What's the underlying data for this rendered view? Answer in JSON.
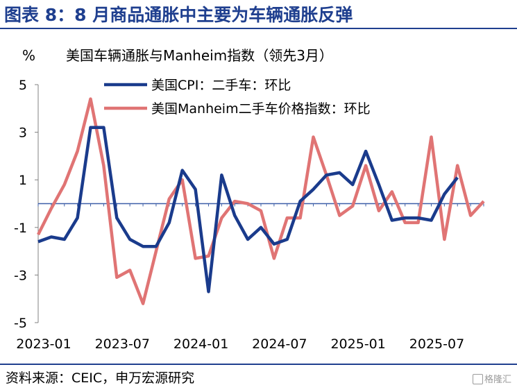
{
  "figure_title": "图表 8：8 月商品通胀中主要为车辆通胀反弹",
  "source_note": "资料来源：CEIC，申万宏源研究",
  "watermark": "格隆汇",
  "colors": {
    "cpi": "#1a3b8c",
    "manheim": "#e07474",
    "zero_line": "#3d5fa8",
    "title": "#1f3f8f"
  },
  "chart_data": {
    "type": "line",
    "title": "美国车辆通胀与Manheim指数（领先3月）",
    "ylabel": "%",
    "ylim": [
      -5,
      5
    ],
    "yticks": [
      5,
      3,
      1,
      -1,
      -3,
      -5
    ],
    "xtick_labels": [
      "2023-01",
      "2023-07",
      "2024-01",
      "2024-07",
      "2025-01",
      "2025-07"
    ],
    "xtick_index": [
      0,
      6,
      12,
      18,
      24,
      30
    ],
    "grid": false,
    "legend": "top",
    "x": [
      "2023-01",
      "2023-02",
      "2023-03",
      "2023-04",
      "2023-05",
      "2023-06",
      "2023-07",
      "2023-08",
      "2023-09",
      "2023-10",
      "2023-11",
      "2023-12",
      "2024-01",
      "2024-02",
      "2024-03",
      "2024-04",
      "2024-05",
      "2024-06",
      "2024-07",
      "2024-08",
      "2024-09",
      "2024-10",
      "2024-11",
      "2024-12",
      "2025-01",
      "2025-02",
      "2025-03",
      "2025-04",
      "2025-05",
      "2025-06",
      "2025-07",
      "2025-08",
      "2025-09",
      "2025-10",
      "2025-11"
    ],
    "series": [
      {
        "name": "美国CPI：二手车：环比",
        "values": [
          -1.6,
          -1.4,
          -1.5,
          -0.6,
          3.2,
          3.2,
          -0.6,
          -1.5,
          -1.8,
          -1.8,
          -0.8,
          1.4,
          0.6,
          -3.7,
          1.2,
          -0.5,
          -1.5,
          -1.0,
          -1.7,
          -1.5,
          0.1,
          0.6,
          1.2,
          1.3,
          0.8,
          2.2,
          0.8,
          -0.7,
          -0.6,
          -0.6,
          -0.7,
          0.4,
          1.1,
          null,
          null
        ]
      },
      {
        "name": "美国Manheim二手车价格指数：环比",
        "values": [
          -1.3,
          -0.2,
          0.8,
          2.2,
          4.4,
          1.6,
          -3.1,
          -2.8,
          -4.2,
          -2.0,
          0.2,
          1.0,
          -2.3,
          -2.2,
          -0.6,
          0.1,
          0.0,
          -0.3,
          -2.3,
          -0.6,
          -0.6,
          2.8,
          1.2,
          -0.5,
          -0.1,
          1.6,
          -0.3,
          0.5,
          -0.8,
          -0.8,
          2.8,
          -1.5,
          1.6,
          -0.5,
          0.1
        ]
      }
    ]
  }
}
